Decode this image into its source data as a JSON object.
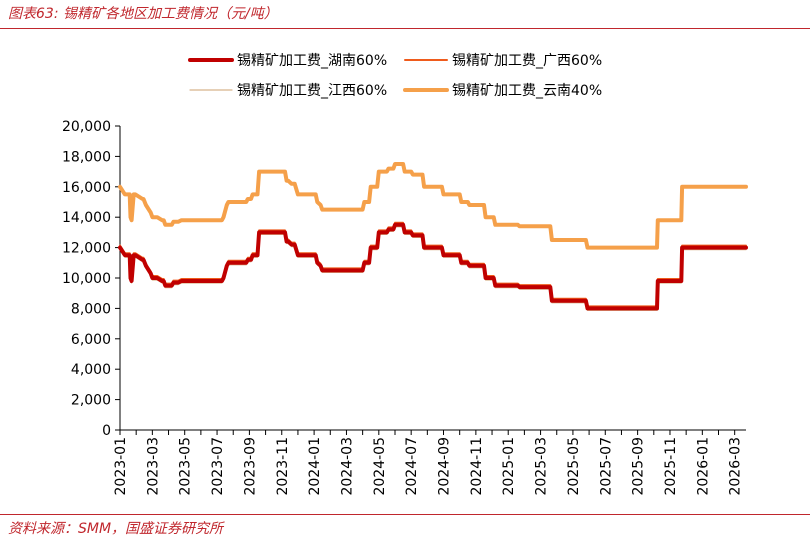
{
  "header": {
    "title": "图表63:  锡精矿各地区加工费情况（元/吨）"
  },
  "footer": {
    "source": "资料来源：SMM，国盛证券研究所"
  },
  "chart_data": {
    "type": "line",
    "title": "锡精矿各地区加工费情况（元/吨）",
    "xlabel": "",
    "ylabel": "元/吨",
    "ylim": [
      0,
      20000
    ],
    "ytick_labels": [
      "0",
      "2,000",
      "4,000",
      "6,000",
      "8,000",
      "10,000",
      "12,000",
      "14,000",
      "16,000",
      "18,000",
      "20,000"
    ],
    "ytick_values": [
      0,
      2000,
      4000,
      6000,
      8000,
      10000,
      12000,
      14000,
      16000,
      18000,
      20000
    ],
    "xlim": [
      0,
      38.7
    ],
    "xtick_labels": [
      "2023-01",
      "2023-03",
      "2023-05",
      "2023-07",
      "2023-09",
      "2023-11",
      "2024-01",
      "2024-03",
      "2024-05",
      "2024-07",
      "2024-09",
      "2024-11",
      "2025-01",
      "2025-03",
      "2025-05",
      "2025-07",
      "2025-09",
      "2025-11",
      "2026-01",
      "2026-03"
    ],
    "legend_position": "top",
    "series": [
      {
        "name": "锡精矿加工费_湖南60%",
        "color": "#c00000",
        "width": 4,
        "offset": 0,
        "x": [
          0,
          0.3,
          0.6,
          0.65,
          0.72,
          0.85,
          0.95,
          1.4,
          1.45,
          1.6,
          1.9,
          2.0,
          2.3,
          2.6,
          2.7,
          2.8,
          3.0,
          3.2,
          3.3,
          3.6,
          3.8,
          4.2,
          4.3,
          6.3,
          6.4,
          6.6,
          6.7,
          7.8,
          7.9,
          8.1,
          8.2,
          8.5,
          8.6,
          10.2,
          10.3,
          10.4,
          10.6,
          10.8,
          11.0,
          12.1,
          12.2,
          12.4,
          12.5,
          15.0,
          15.1,
          15.4,
          15.5,
          15.9,
          16.0,
          16.5,
          16.6,
          16.9,
          17.0,
          17.5,
          17.6,
          18.0,
          18.1,
          18.7,
          18.8,
          19.9,
          20.0,
          21.0,
          21.1,
          21.5,
          21.6,
          22.5,
          22.6,
          23.1,
          23.2,
          24.6,
          24.7,
          26.6,
          26.7,
          28.8,
          28.9,
          33.2,
          33.25,
          34.7,
          34.75,
          38.7
        ],
        "values": [
          12000,
          11500,
          11500,
          10000,
          9800,
          11500,
          11500,
          11200,
          11200,
          10800,
          10300,
          10000,
          10000,
          9800,
          9800,
          9500,
          9500,
          9500,
          9700,
          9700,
          9800,
          9800,
          9800,
          9800,
          10000,
          10800,
          11000,
          11000,
          11200,
          11200,
          11500,
          11500,
          13000,
          13000,
          12400,
          12400,
          12200,
          12200,
          11500,
          11500,
          11000,
          10800,
          10500,
          10500,
          11000,
          11000,
          12000,
          12000,
          13000,
          13000,
          13200,
          13200,
          13500,
          13500,
          13000,
          13000,
          12800,
          12800,
          12000,
          12000,
          11500,
          11500,
          11000,
          11000,
          10800,
          10800,
          10000,
          10000,
          9500,
          9500,
          9400,
          9400,
          8500,
          8500,
          8000,
          8000,
          9800,
          9800,
          12000,
          12000
        ]
      },
      {
        "name": "锡精矿加工费_广西60%",
        "color": "#ef5b1c",
        "width": 2,
        "offset": -2,
        "x": [
          0,
          0.3,
          0.6,
          0.65,
          0.72,
          0.85,
          0.95,
          1.4,
          1.45,
          1.6,
          1.9,
          2.0,
          2.3,
          2.6,
          2.7,
          2.8,
          3.0,
          3.2,
          3.3,
          3.6,
          3.8,
          4.2,
          4.3,
          6.3,
          6.4,
          6.6,
          6.7,
          7.8,
          7.9,
          8.1,
          8.2,
          8.5,
          8.6,
          10.2,
          10.3,
          10.4,
          10.6,
          10.8,
          11.0,
          12.1,
          12.2,
          12.4,
          12.5,
          15.0,
          15.1,
          15.4,
          15.5,
          15.9,
          16.0,
          16.5,
          16.6,
          16.9,
          17.0,
          17.5,
          17.6,
          18.0,
          18.1,
          18.7,
          18.8,
          19.9,
          20.0,
          21.0,
          21.1,
          21.5,
          21.6,
          22.5,
          22.6,
          23.1,
          23.2,
          24.6,
          24.7,
          26.6,
          26.7,
          28.8,
          28.9,
          33.2,
          33.25,
          34.7,
          34.75,
          38.7
        ],
        "values": [
          12000,
          11500,
          11500,
          10000,
          9800,
          11500,
          11500,
          11200,
          11200,
          10800,
          10300,
          10000,
          10000,
          9800,
          9800,
          9500,
          9500,
          9500,
          9700,
          9700,
          9800,
          9800,
          9800,
          9800,
          10000,
          10800,
          11000,
          11000,
          11200,
          11200,
          11500,
          11500,
          13000,
          13000,
          12400,
          12400,
          12200,
          12200,
          11500,
          11500,
          11000,
          10800,
          10500,
          10500,
          11000,
          11000,
          12000,
          12000,
          13000,
          13000,
          13200,
          13200,
          13500,
          13500,
          13000,
          13000,
          12800,
          12800,
          12000,
          12000,
          11500,
          11500,
          11000,
          11000,
          10800,
          10800,
          10000,
          10000,
          9500,
          9500,
          9400,
          9400,
          8500,
          8500,
          8000,
          8000,
          9800,
          9800,
          12000,
          12000
        ]
      },
      {
        "name": "锡精矿加工费_江西60%",
        "color": "#d8b48c",
        "width": 1.2,
        "offset": 2,
        "x": [
          0,
          0.3,
          0.6,
          0.65,
          0.72,
          0.85,
          0.95,
          1.4,
          1.45,
          1.6,
          1.9,
          2.0,
          2.3,
          2.6,
          2.7,
          2.8,
          3.0,
          3.2,
          3.3,
          3.6,
          3.8,
          4.2,
          4.3,
          6.3,
          6.4,
          6.6,
          6.7,
          7.8,
          7.9,
          8.1,
          8.2,
          8.5,
          8.6,
          10.2,
          10.3,
          10.4,
          10.6,
          10.8,
          11.0,
          12.1,
          12.2,
          12.4,
          12.5,
          15.0,
          15.1,
          15.4,
          15.5,
          15.9,
          16.0,
          16.5,
          16.6,
          16.9,
          17.0,
          17.5,
          17.6,
          18.0,
          18.1,
          18.7,
          18.8,
          19.9,
          20.0,
          21.0,
          21.1,
          21.5,
          21.6,
          22.5,
          22.6,
          23.1,
          23.2,
          24.6,
          24.7,
          26.6,
          26.7,
          28.8,
          28.9,
          33.2,
          33.25,
          34.7,
          34.75,
          38.7
        ],
        "values": [
          12000,
          11500,
          11500,
          10000,
          9800,
          11500,
          11500,
          11200,
          11200,
          10800,
          10300,
          10000,
          10000,
          9800,
          9800,
          9500,
          9500,
          9500,
          9700,
          9700,
          9800,
          9800,
          9800,
          9800,
          10000,
          10800,
          11000,
          11000,
          11200,
          11200,
          11500,
          11500,
          13000,
          13000,
          12400,
          12400,
          12200,
          12200,
          11500,
          11500,
          11000,
          10800,
          10500,
          10500,
          11000,
          11000,
          12000,
          12000,
          13000,
          13000,
          13200,
          13200,
          13500,
          13500,
          13000,
          13000,
          12800,
          12800,
          12000,
          12000,
          11500,
          11500,
          11000,
          11000,
          10800,
          10800,
          10000,
          10000,
          9500,
          9500,
          9400,
          9400,
          8500,
          8500,
          8000,
          8000,
          9800,
          9800,
          12000,
          12000
        ]
      },
      {
        "name": "锡精矿加工费_云南40%",
        "color": "#f5a04a",
        "width": 4,
        "offset": 0,
        "x": [
          0,
          0.3,
          0.6,
          0.65,
          0.72,
          0.85,
          0.95,
          1.4,
          1.45,
          1.6,
          1.9,
          2.0,
          2.3,
          2.6,
          2.7,
          2.8,
          3.0,
          3.2,
          3.3,
          3.6,
          3.8,
          4.2,
          4.3,
          6.3,
          6.4,
          6.6,
          6.7,
          7.8,
          7.9,
          8.1,
          8.2,
          8.5,
          8.6,
          10.2,
          10.3,
          10.4,
          10.6,
          10.8,
          11.0,
          12.1,
          12.2,
          12.4,
          12.5,
          15.0,
          15.1,
          15.4,
          15.5,
          15.9,
          16.0,
          16.5,
          16.6,
          16.9,
          17.0,
          17.5,
          17.6,
          18.0,
          18.1,
          18.7,
          18.8,
          19.9,
          20.0,
          21.0,
          21.1,
          21.5,
          21.6,
          22.5,
          22.6,
          23.1,
          23.2,
          24.6,
          24.7,
          26.6,
          26.7,
          28.8,
          28.9,
          33.2,
          33.25,
          34.7,
          34.75,
          38.7
        ],
        "values": [
          16000,
          15500,
          15500,
          14000,
          13800,
          15500,
          15500,
          15200,
          15200,
          14800,
          14300,
          14000,
          14000,
          13800,
          13800,
          13500,
          13500,
          13500,
          13700,
          13700,
          13800,
          13800,
          13800,
          13800,
          14000,
          14800,
          15000,
          15000,
          15200,
          15200,
          15500,
          15500,
          17000,
          17000,
          16400,
          16400,
          16200,
          16200,
          15500,
          15500,
          15000,
          14800,
          14500,
          14500,
          15000,
          15000,
          16000,
          16000,
          17000,
          17000,
          17200,
          17200,
          17500,
          17500,
          17000,
          17000,
          16800,
          16800,
          16000,
          16000,
          15500,
          15500,
          15000,
          15000,
          14800,
          14800,
          14000,
          14000,
          13500,
          13500,
          13400,
          13400,
          12500,
          12500,
          12000,
          12000,
          13800,
          13800,
          16000,
          16000
        ]
      }
    ]
  }
}
